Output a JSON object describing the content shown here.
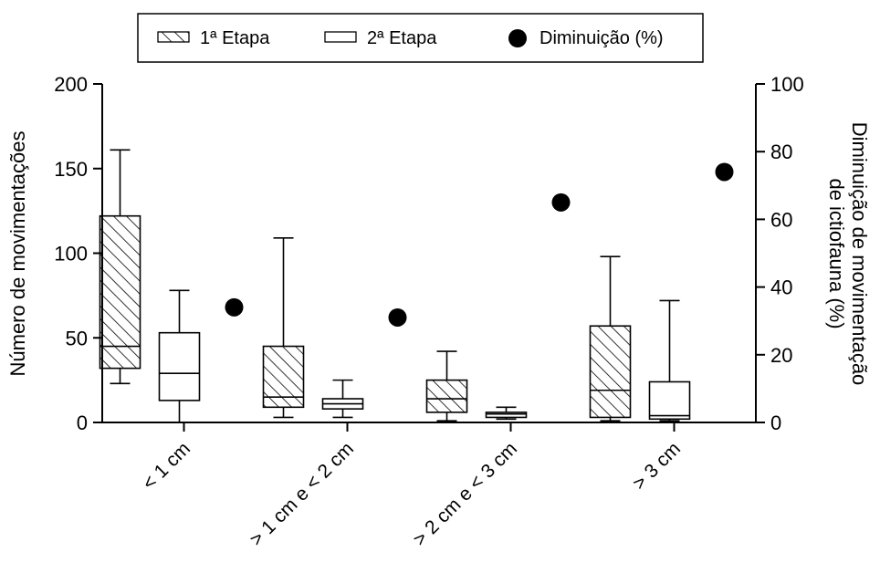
{
  "chart_data": {
    "type": "box",
    "categories": [
      "< 1 cm",
      "> 1 cm e < 2 cm",
      "> 2 cm e < 3 cm",
      "> 3 cm"
    ],
    "series": [
      {
        "name": "1ª Etapa",
        "style": "hatched",
        "boxes": [
          {
            "min": 23,
            "q1": 32,
            "median": 45,
            "q3": 122,
            "max": 161
          },
          {
            "min": 3,
            "q1": 9,
            "median": 15,
            "q3": 45,
            "max": 109
          },
          {
            "min": 1,
            "q1": 6,
            "median": 14,
            "q3": 25,
            "max": 42
          },
          {
            "min": 1,
            "q1": 3,
            "median": 19,
            "q3": 57,
            "max": 98
          }
        ]
      },
      {
        "name": "2ª Etapa",
        "style": "open",
        "boxes": [
          {
            "min": 0,
            "q1": 13,
            "median": 29,
            "q3": 53,
            "max": 78
          },
          {
            "min": 3,
            "q1": 8,
            "median": 11,
            "q3": 14,
            "max": 25
          },
          {
            "min": 2,
            "q1": 3,
            "median": 5,
            "q3": 6,
            "max": 9
          },
          {
            "min": 1,
            "q1": 2,
            "median": 4,
            "q3": 24,
            "max": 72
          }
        ]
      }
    ],
    "points": {
      "name": "Diminuição (%)",
      "axis": "right",
      "values": [
        34,
        31,
        65,
        74
      ]
    },
    "ylabel_left": "Número de movimentações",
    "ylabel_right_lines": [
      "Diminuição de movimentação",
      "de ictiofauna (%)"
    ],
    "ylim_left": [
      0,
      200
    ],
    "ylim_right": [
      0,
      100
    ],
    "yticks_left": [
      "0",
      "50",
      "100",
      "150",
      "200"
    ],
    "yticks_right": [
      "0",
      "20",
      "40",
      "60",
      "80",
      "100"
    ],
    "legend_placement": "top-center",
    "grid": false,
    "colors": {
      "axis": "#000000",
      "box_fill": "#ffffff",
      "hatch": "#000000",
      "points": "#000000"
    }
  }
}
